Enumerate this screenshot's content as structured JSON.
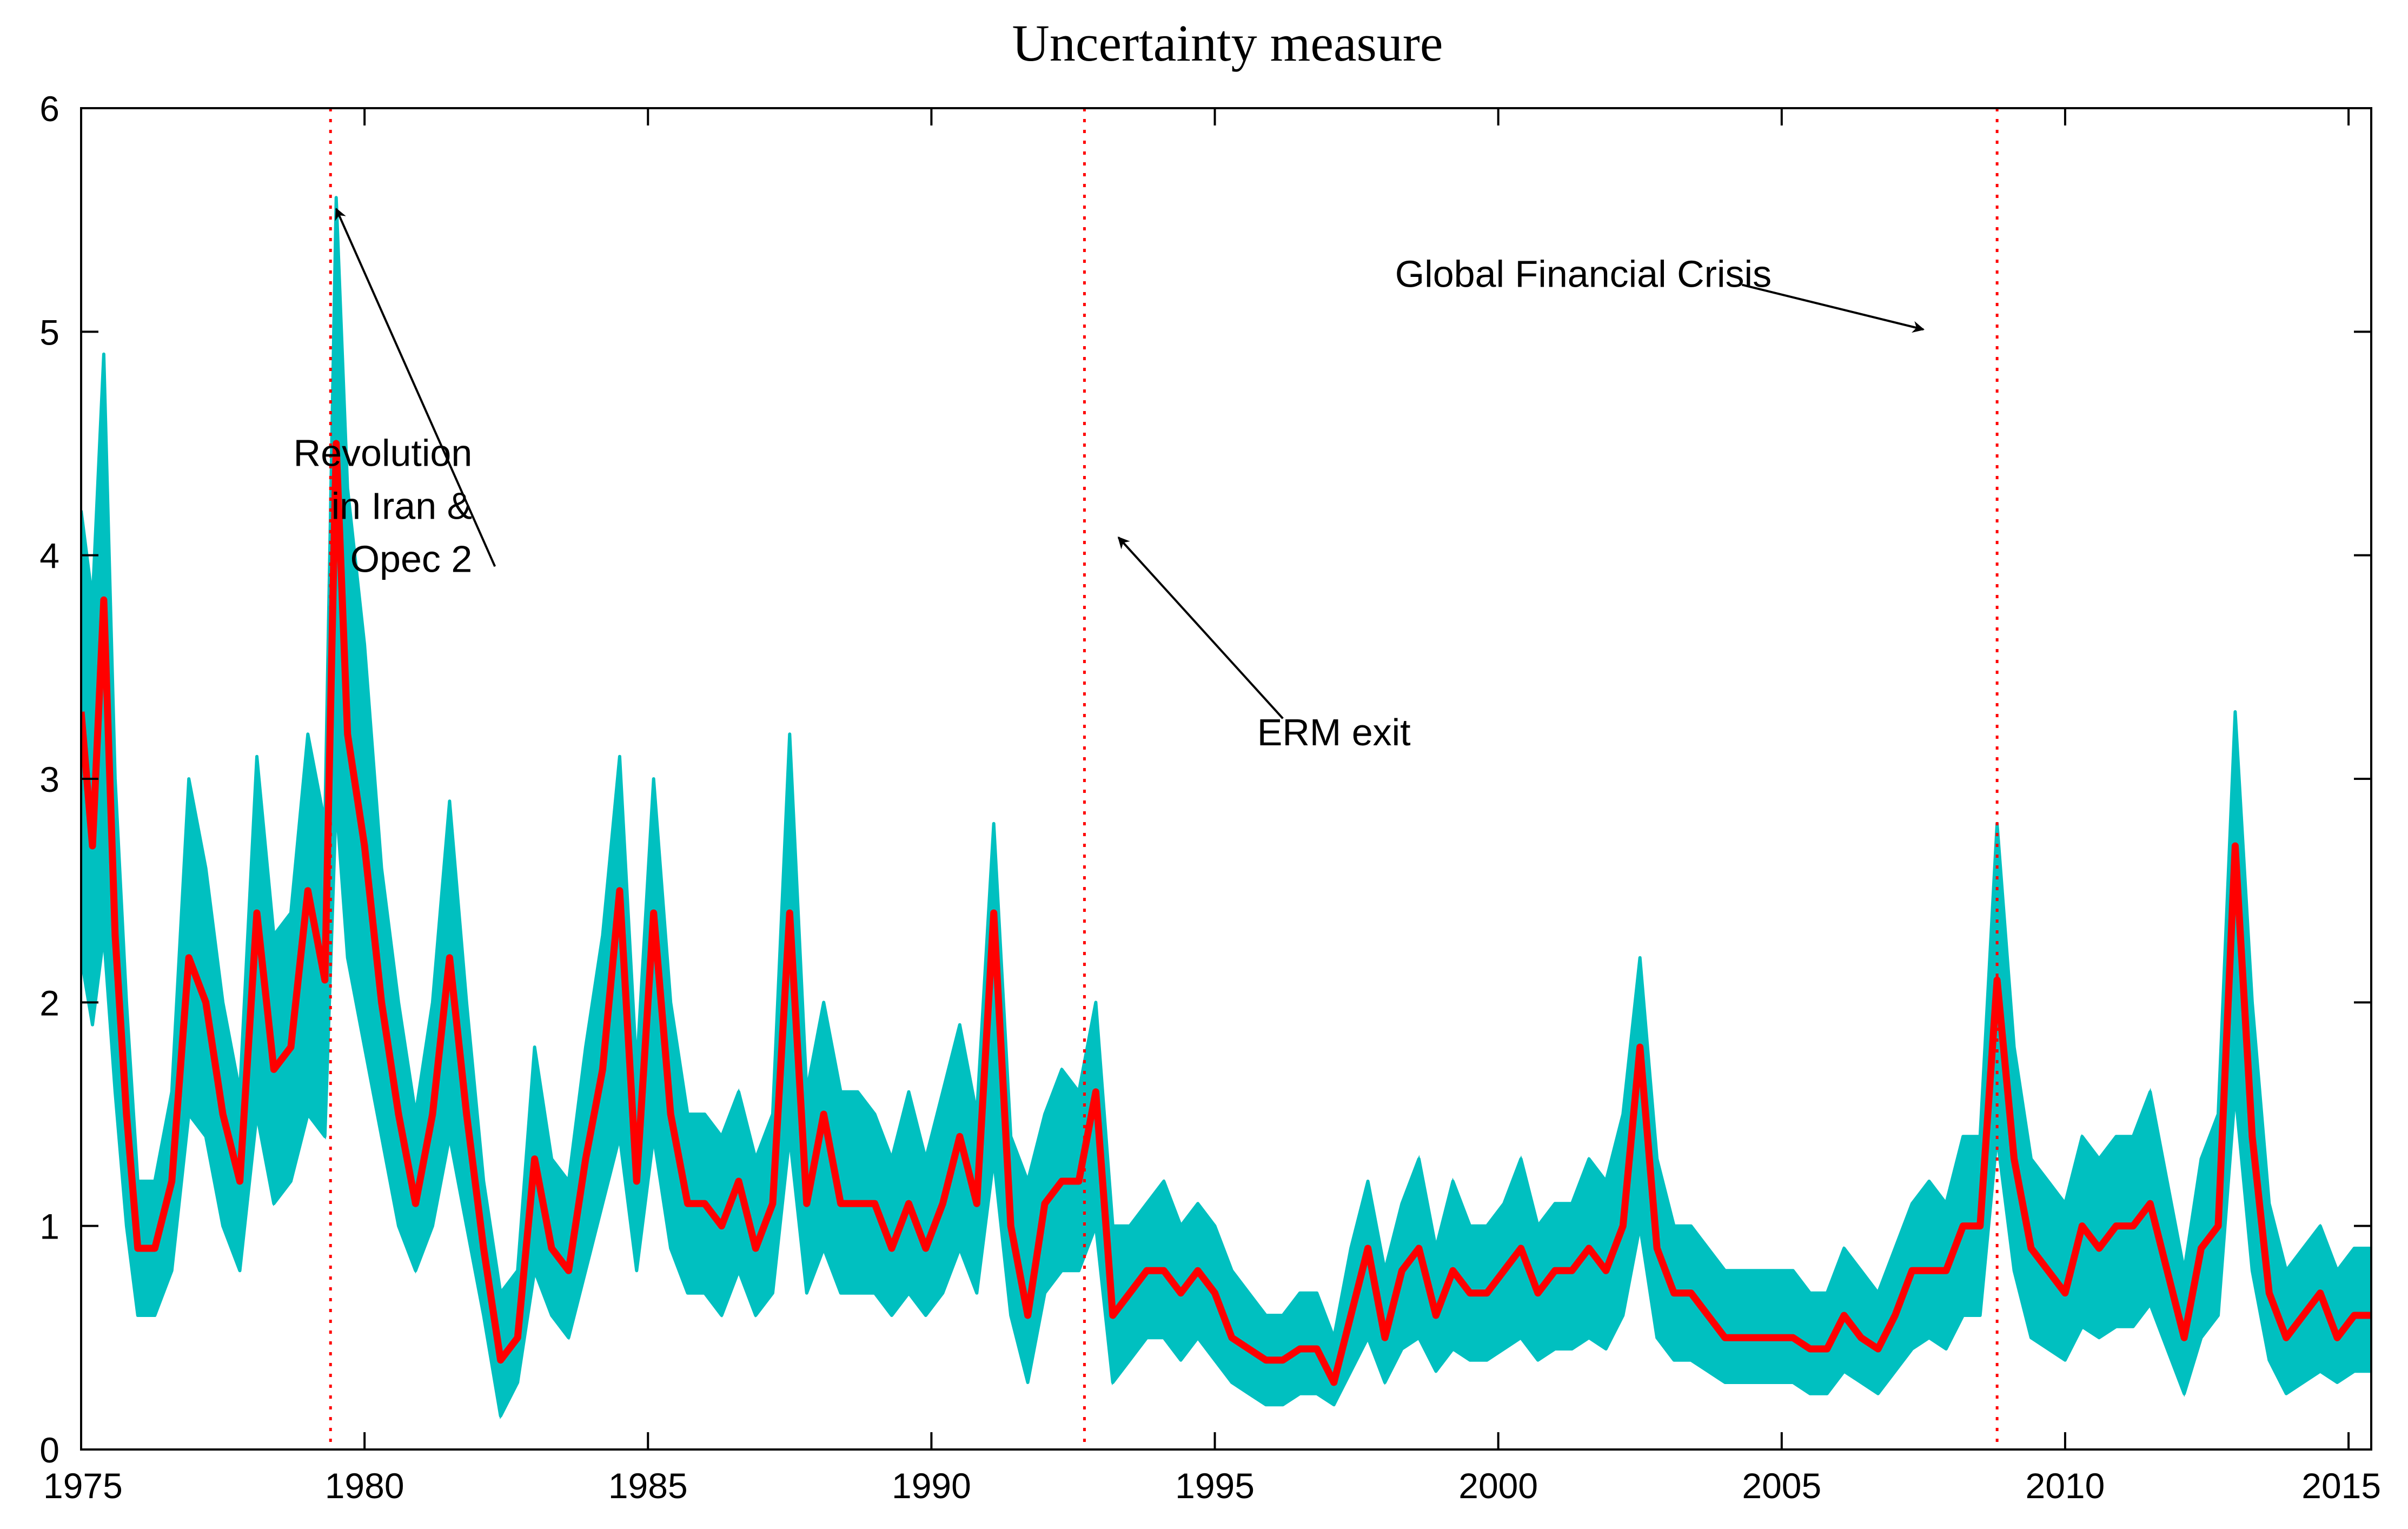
{
  "chart_data": {
    "type": "line",
    "title": "Uncertainty measure",
    "xlabel": "",
    "ylabel": "",
    "xlim": [
      1975,
      2015.4
    ],
    "ylim": [
      0,
      6
    ],
    "x_ticks": [
      1975,
      1980,
      1985,
      1990,
      1995,
      2000,
      2005,
      2010,
      2015
    ],
    "x_tick_labels": [
      "1975",
      "1980",
      "1985",
      "1990",
      "1995",
      "2000",
      "2005",
      "2010",
      "2015"
    ],
    "y_ticks": [
      0,
      1,
      2,
      3,
      4,
      5,
      6
    ],
    "y_tick_labels": [
      "0",
      "1",
      "2",
      "3",
      "4",
      "5",
      "6"
    ],
    "grid": false,
    "series": [
      {
        "name": "Uncertainty band (upper)",
        "color": "#00C0C0",
        "x": [
          1975.0,
          1975.2,
          1975.4,
          1975.6,
          1975.8,
          1976.0,
          1976.3,
          1976.6,
          1976.9,
          1977.2,
          1977.5,
          1977.8,
          1978.1,
          1978.4,
          1978.7,
          1979.0,
          1979.3,
          1979.5,
          1979.7,
          1980.0,
          1980.3,
          1980.6,
          1980.9,
          1981.2,
          1981.5,
          1981.8,
          1982.1,
          1982.4,
          1982.7,
          1983.0,
          1983.3,
          1983.6,
          1983.9,
          1984.2,
          1984.5,
          1984.8,
          1985.1,
          1985.4,
          1985.7,
          1986.0,
          1986.3,
          1986.6,
          1986.9,
          1987.2,
          1987.5,
          1987.8,
          1988.1,
          1988.4,
          1988.7,
          1989.0,
          1989.3,
          1989.6,
          1989.9,
          1990.2,
          1990.5,
          1990.8,
          1991.1,
          1991.4,
          1991.7,
          1992.0,
          1992.3,
          1992.6,
          1992.9,
          1993.2,
          1993.5,
          1993.8,
          1994.1,
          1994.4,
          1994.7,
          1995.0,
          1995.3,
          1995.6,
          1995.9,
          1996.2,
          1996.5,
          1996.8,
          1997.1,
          1997.4,
          1997.7,
          1998.0,
          1998.3,
          1998.6,
          1998.9,
          1999.2,
          1999.5,
          1999.8,
          2000.1,
          2000.4,
          2000.7,
          2001.0,
          2001.3,
          2001.6,
          2001.9,
          2002.2,
          2002.5,
          2002.8,
          2003.1,
          2003.4,
          2003.7,
          2004.0,
          2004.3,
          2004.6,
          2004.9,
          2005.2,
          2005.5,
          2005.8,
          2006.1,
          2006.4,
          2006.7,
          2007.0,
          2007.3,
          2007.6,
          2007.9,
          2008.2,
          2008.5,
          2008.8,
          2009.1,
          2009.4,
          2009.7,
          2010.0,
          2010.3,
          2010.6,
          2010.9,
          2011.2,
          2011.5,
          2011.8,
          2012.1,
          2012.4,
          2012.7,
          2013.0,
          2013.3,
          2013.6,
          2013.9,
          2014.2,
          2014.5,
          2014.8,
          2015.1,
          2015.4
        ],
        "values": [
          4.2,
          3.8,
          4.9,
          3.0,
          2.0,
          1.2,
          1.2,
          1.6,
          3.0,
          2.6,
          2.0,
          1.6,
          3.1,
          2.3,
          2.4,
          3.2,
          2.8,
          5.6,
          4.3,
          3.6,
          2.6,
          2.0,
          1.5,
          2.0,
          2.9,
          2.0,
          1.2,
          0.7,
          0.8,
          1.8,
          1.3,
          1.2,
          1.8,
          2.3,
          3.1,
          1.7,
          3.0,
          2.0,
          1.5,
          1.5,
          1.4,
          1.6,
          1.3,
          1.5,
          3.2,
          1.6,
          2.0,
          1.6,
          1.6,
          1.5,
          1.3,
          1.6,
          1.3,
          1.6,
          1.9,
          1.5,
          2.8,
          1.4,
          1.2,
          1.5,
          1.7,
          1.6,
          2.0,
          1.0,
          1.0,
          1.1,
          1.2,
          1.0,
          1.1,
          1.0,
          0.8,
          0.7,
          0.6,
          0.6,
          0.7,
          0.7,
          0.5,
          0.9,
          1.2,
          0.8,
          1.1,
          1.3,
          0.9,
          1.2,
          1.0,
          1.0,
          1.1,
          1.3,
          1.0,
          1.1,
          1.1,
          1.3,
          1.2,
          1.5,
          2.2,
          1.3,
          1.0,
          1.0,
          0.9,
          0.8,
          0.8,
          0.8,
          0.8,
          0.8,
          0.7,
          0.7,
          0.9,
          0.8,
          0.7,
          0.9,
          1.1,
          1.2,
          1.1,
          1.4,
          1.4,
          2.8,
          1.8,
          1.3,
          1.2,
          1.1,
          1.4,
          1.3,
          1.4,
          1.4,
          1.6,
          1.2,
          0.8,
          1.3,
          1.5,
          3.3,
          2.0,
          1.1,
          0.8,
          0.9,
          1.0,
          0.8,
          0.9,
          0.9
        ]
      },
      {
        "name": "Uncertainty band (lower)",
        "color": "#00C0C0",
        "x": [
          1975.0,
          1975.2,
          1975.4,
          1975.6,
          1975.8,
          1976.0,
          1976.3,
          1976.6,
          1976.9,
          1977.2,
          1977.5,
          1977.8,
          1978.1,
          1978.4,
          1978.7,
          1979.0,
          1979.3,
          1979.5,
          1979.7,
          1980.0,
          1980.3,
          1980.6,
          1980.9,
          1981.2,
          1981.5,
          1981.8,
          1982.1,
          1982.4,
          1982.7,
          1983.0,
          1983.3,
          1983.6,
          1983.9,
          1984.2,
          1984.5,
          1984.8,
          1985.1,
          1985.4,
          1985.7,
          1986.0,
          1986.3,
          1986.6,
          1986.9,
          1987.2,
          1987.5,
          1987.8,
          1988.1,
          1988.4,
          1988.7,
          1989.0,
          1989.3,
          1989.6,
          1989.9,
          1990.2,
          1990.5,
          1990.8,
          1991.1,
          1991.4,
          1991.7,
          1992.0,
          1992.3,
          1992.6,
          1992.9,
          1993.2,
          1993.5,
          1993.8,
          1994.1,
          1994.4,
          1994.7,
          1995.0,
          1995.3,
          1995.6,
          1995.9,
          1996.2,
          1996.5,
          1996.8,
          1997.1,
          1997.4,
          1997.7,
          1998.0,
          1998.3,
          1998.6,
          1998.9,
          1999.2,
          1999.5,
          1999.8,
          2000.1,
          2000.4,
          2000.7,
          2001.0,
          2001.3,
          2001.6,
          2001.9,
          2002.2,
          2002.5,
          2002.8,
          2003.1,
          2003.4,
          2003.7,
          2004.0,
          2004.3,
          2004.6,
          2004.9,
          2005.2,
          2005.5,
          2005.8,
          2006.1,
          2006.4,
          2006.7,
          2007.0,
          2007.3,
          2007.6,
          2007.9,
          2008.2,
          2008.5,
          2008.8,
          2009.1,
          2009.4,
          2009.7,
          2010.0,
          2010.3,
          2010.6,
          2010.9,
          2011.2,
          2011.5,
          2011.8,
          2012.1,
          2012.4,
          2012.7,
          2013.0,
          2013.3,
          2013.6,
          2013.9,
          2014.2,
          2014.5,
          2014.8,
          2015.1,
          2015.4
        ],
        "values": [
          2.2,
          1.9,
          2.3,
          1.6,
          1.0,
          0.6,
          0.6,
          0.8,
          1.5,
          1.4,
          1.0,
          0.8,
          1.5,
          1.1,
          1.2,
          1.5,
          1.4,
          2.9,
          2.2,
          1.8,
          1.4,
          1.0,
          0.8,
          1.0,
          1.4,
          1.0,
          0.6,
          0.15,
          0.3,
          0.8,
          0.6,
          0.5,
          0.8,
          1.1,
          1.4,
          0.8,
          1.4,
          0.9,
          0.7,
          0.7,
          0.6,
          0.8,
          0.6,
          0.7,
          1.4,
          0.7,
          0.9,
          0.7,
          0.7,
          0.7,
          0.6,
          0.7,
          0.6,
          0.7,
          0.9,
          0.7,
          1.3,
          0.6,
          0.3,
          0.7,
          0.8,
          0.8,
          1.0,
          0.3,
          0.4,
          0.5,
          0.5,
          0.4,
          0.5,
          0.4,
          0.3,
          0.25,
          0.2,
          0.2,
          0.25,
          0.25,
          0.2,
          0.35,
          0.5,
          0.3,
          0.45,
          0.5,
          0.35,
          0.45,
          0.4,
          0.4,
          0.45,
          0.5,
          0.4,
          0.45,
          0.45,
          0.5,
          0.45,
          0.6,
          1.0,
          0.5,
          0.4,
          0.4,
          0.35,
          0.3,
          0.3,
          0.3,
          0.3,
          0.3,
          0.25,
          0.25,
          0.35,
          0.3,
          0.25,
          0.35,
          0.45,
          0.5,
          0.45,
          0.6,
          0.6,
          1.4,
          0.8,
          0.5,
          0.45,
          0.4,
          0.55,
          0.5,
          0.55,
          0.55,
          0.65,
          0.45,
          0.25,
          0.5,
          0.6,
          1.6,
          0.8,
          0.4,
          0.25,
          0.3,
          0.35,
          0.3,
          0.35,
          0.35
        ]
      },
      {
        "name": "Uncertainty measure",
        "color": "#FF0000",
        "x": [
          1975.0,
          1975.2,
          1975.4,
          1975.6,
          1975.8,
          1976.0,
          1976.3,
          1976.6,
          1976.9,
          1977.2,
          1977.5,
          1977.8,
          1978.1,
          1978.4,
          1978.7,
          1979.0,
          1979.3,
          1979.5,
          1979.7,
          1980.0,
          1980.3,
          1980.6,
          1980.9,
          1981.2,
          1981.5,
          1981.8,
          1982.1,
          1982.4,
          1982.7,
          1983.0,
          1983.3,
          1983.6,
          1983.9,
          1984.2,
          1984.5,
          1984.8,
          1985.1,
          1985.4,
          1985.7,
          1986.0,
          1986.3,
          1986.6,
          1986.9,
          1987.2,
          1987.5,
          1987.8,
          1988.1,
          1988.4,
          1988.7,
          1989.0,
          1989.3,
          1989.6,
          1989.9,
          1990.2,
          1990.5,
          1990.8,
          1991.1,
          1991.4,
          1991.7,
          1992.0,
          1992.3,
          1992.6,
          1992.9,
          1993.2,
          1993.5,
          1993.8,
          1994.1,
          1994.4,
          1994.7,
          1995.0,
          1995.3,
          1995.6,
          1995.9,
          1996.2,
          1996.5,
          1996.8,
          1997.1,
          1997.4,
          1997.7,
          1998.0,
          1998.3,
          1998.6,
          1998.9,
          1999.2,
          1999.5,
          1999.8,
          2000.1,
          2000.4,
          2000.7,
          2001.0,
          2001.3,
          2001.6,
          2001.9,
          2002.2,
          2002.5,
          2002.8,
          2003.1,
          2003.4,
          2003.7,
          2004.0,
          2004.3,
          2004.6,
          2004.9,
          2005.2,
          2005.5,
          2005.8,
          2006.1,
          2006.4,
          2006.7,
          2007.0,
          2007.3,
          2007.6,
          2007.9,
          2008.2,
          2008.5,
          2008.8,
          2009.1,
          2009.4,
          2009.7,
          2010.0,
          2010.3,
          2010.6,
          2010.9,
          2011.2,
          2011.5,
          2011.8,
          2012.1,
          2012.4,
          2012.7,
          2013.0,
          2013.3,
          2013.6,
          2013.9,
          2014.2,
          2014.5,
          2014.8,
          2015.1,
          2015.4
        ],
        "values": [
          3.3,
          2.7,
          3.8,
          2.3,
          1.5,
          0.9,
          0.9,
          1.2,
          2.2,
          2.0,
          1.5,
          1.2,
          2.4,
          1.7,
          1.8,
          2.5,
          2.1,
          4.5,
          3.2,
          2.7,
          2.0,
          1.5,
          1.1,
          1.5,
          2.2,
          1.5,
          0.9,
          0.4,
          0.5,
          1.3,
          0.9,
          0.8,
          1.3,
          1.7,
          2.5,
          1.2,
          2.4,
          1.5,
          1.1,
          1.1,
          1.0,
          1.2,
          0.9,
          1.1,
          2.4,
          1.1,
          1.5,
          1.1,
          1.1,
          1.1,
          0.9,
          1.1,
          0.9,
          1.1,
          1.4,
          1.1,
          2.4,
          1.0,
          0.6,
          1.1,
          1.2,
          1.2,
          1.6,
          0.6,
          0.7,
          0.8,
          0.8,
          0.7,
          0.8,
          0.7,
          0.5,
          0.45,
          0.4,
          0.4,
          0.45,
          0.45,
          0.3,
          0.6,
          0.9,
          0.5,
          0.8,
          0.9,
          0.6,
          0.8,
          0.7,
          0.7,
          0.8,
          0.9,
          0.7,
          0.8,
          0.8,
          0.9,
          0.8,
          1.0,
          1.8,
          0.9,
          0.7,
          0.7,
          0.6,
          0.5,
          0.5,
          0.5,
          0.5,
          0.5,
          0.45,
          0.45,
          0.6,
          0.5,
          0.45,
          0.6,
          0.8,
          0.8,
          0.8,
          1.0,
          1.0,
          2.1,
          1.3,
          0.9,
          0.8,
          0.7,
          1.0,
          0.9,
          1.0,
          1.0,
          1.1,
          0.8,
          0.5,
          0.9,
          1.0,
          2.7,
          1.4,
          0.7,
          0.5,
          0.6,
          0.7,
          0.5,
          0.6,
          0.6
        ]
      }
    ],
    "vertical_lines": [
      {
        "x": 1979.4,
        "color": "#FF0000",
        "style": "dotted"
      },
      {
        "x": 1992.7,
        "color": "#FF0000",
        "style": "dotted"
      },
      {
        "x": 2008.8,
        "color": "#FF0000",
        "style": "dotted"
      }
    ],
    "annotations": [
      {
        "lines": [
          "Revolution",
          "in Iran &",
          "Opec 2"
        ],
        "align": "right",
        "text_x": 1981.9,
        "text_y": 4.4,
        "arrow_from": [
          1982.3,
          3.95
        ],
        "arrow_to": [
          1979.5,
          5.55
        ]
      },
      {
        "lines": [
          "ERM exit"
        ],
        "align": "middle",
        "text_x": 1997.1,
        "text_y": 3.15,
        "arrow_from": [
          1996.2,
          3.27
        ],
        "arrow_to": [
          1993.3,
          4.08
        ]
      },
      {
        "lines": [
          "Global Financial Crisis"
        ],
        "align": "middle",
        "text_x": 2001.5,
        "text_y": 5.2,
        "arrow_from": [
          2004.3,
          5.21
        ],
        "arrow_to": [
          2007.5,
          5.01
        ]
      }
    ]
  }
}
